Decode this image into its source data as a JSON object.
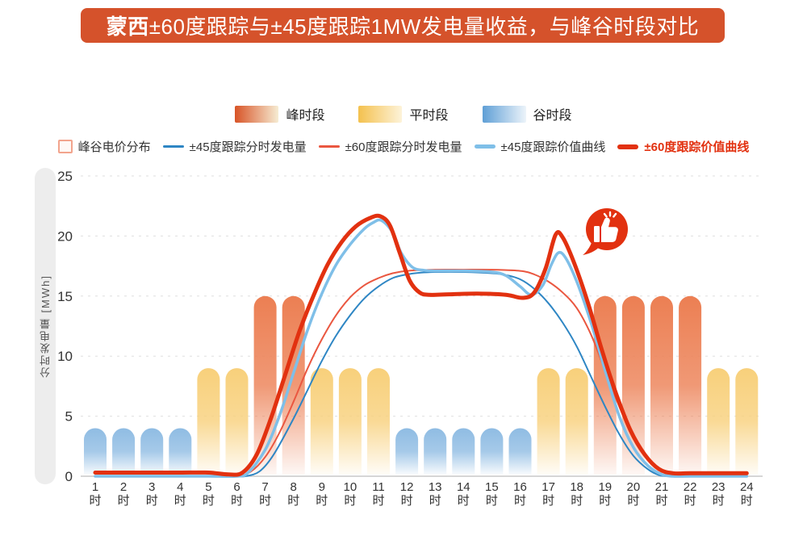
{
  "title": {
    "prefix": "蒙西",
    "rest": "±60度跟踪与±45度跟踪1MW发电量收益，与峰谷时段对比"
  },
  "colors": {
    "banner_bg": "#d5522b",
    "peak_bar": "#ec7f53",
    "flat_bar": "#f8d07b",
    "valley_bar": "#8fbce3",
    "thin_blue": "#2e86c4",
    "thin_red": "#ea5740",
    "thick_lightblue": "#7fbfe8",
    "thick_red": "#e23110",
    "price_box_border": "#f2a48d",
    "grid": "#dfdfdf",
    "axis": "#c8c8c8",
    "text": "#333333"
  },
  "period_legend": [
    {
      "key": "peak",
      "label": "峰时段"
    },
    {
      "key": "flat",
      "label": "平时段"
    },
    {
      "key": "valley",
      "label": "谷时段"
    }
  ],
  "series_legend": [
    {
      "label": "峰谷电价分布",
      "marker": "price-box"
    },
    {
      "label": "±45度跟踪分时发电量",
      "marker": "thin-blue-line"
    },
    {
      "label": "±60度跟踪分时发电量",
      "marker": "thin-red-line"
    },
    {
      "label": "±45度跟踪价值曲线",
      "marker": "thick-lightblue-line"
    },
    {
      "label": "±60度跟踪价值曲线",
      "marker": "thick-red-line",
      "emphasis": true
    }
  ],
  "annotation": {
    "icon": "thumbs-up",
    "near_hour": 17,
    "meaning": "±60度跟踪价值曲线晚峰收益突出"
  },
  "chart_data": [
    {
      "type": "bar",
      "name": "峰谷电价分布",
      "categories": [
        "1时",
        "2时",
        "3时",
        "4时",
        "5时",
        "6时",
        "7时",
        "8时",
        "9时",
        "10时",
        "11时",
        "12时",
        "13时",
        "14时",
        "15时",
        "16时",
        "17时",
        "18时",
        "19时",
        "20时",
        "21时",
        "22时",
        "23时",
        "24时"
      ],
      "values": [
        4,
        4,
        4,
        4,
        9,
        9,
        15,
        15,
        9,
        9,
        9,
        4,
        4,
        4,
        4,
        4,
        9,
        9,
        15,
        15,
        15,
        15,
        9,
        9
      ],
      "periods": [
        "valley",
        "valley",
        "valley",
        "valley",
        "flat",
        "flat",
        "peak",
        "peak",
        "flat",
        "flat",
        "flat",
        "valley",
        "valley",
        "valley",
        "valley",
        "valley",
        "flat",
        "flat",
        "peak",
        "peak",
        "peak",
        "peak",
        "flat",
        "flat"
      ],
      "period_values": {
        "peak": 15,
        "flat": 9,
        "valley": 4
      },
      "ylabel": "分时发电量 [MWh]",
      "ylim": [
        0,
        25
      ],
      "yticks": [
        0,
        5,
        10,
        15,
        20,
        25
      ],
      "grid": "dashed"
    },
    {
      "type": "line",
      "x_unit": "hour",
      "xlim": [
        1,
        24
      ],
      "series": [
        {
          "name": "±45度跟踪分时发电量",
          "color_key": "thin_blue",
          "width": 2,
          "points": [
            [
              1,
              0
            ],
            [
              2,
              0
            ],
            [
              3,
              0
            ],
            [
              4,
              0
            ],
            [
              5,
              0
            ],
            [
              6,
              0
            ],
            [
              6.3,
              0
            ],
            [
              6.8,
              0.4
            ],
            [
              7.3,
              1.8
            ],
            [
              8,
              4.8
            ],
            [
              8.5,
              7.2
            ],
            [
              9,
              9.6
            ],
            [
              9.5,
              11.7
            ],
            [
              10,
              13.4
            ],
            [
              10.5,
              14.8
            ],
            [
              11,
              15.8
            ],
            [
              11.5,
              16.5
            ],
            [
              12,
              16.8
            ],
            [
              12.5,
              16.95
            ],
            [
              13,
              17
            ],
            [
              14,
              17
            ],
            [
              15,
              16.9
            ],
            [
              15.5,
              16.75
            ],
            [
              16,
              16.4
            ],
            [
              16.5,
              15.6
            ],
            [
              17,
              14.4
            ],
            [
              17.5,
              12.8
            ],
            [
              18,
              10.8
            ],
            [
              18.5,
              8.3
            ],
            [
              19,
              5.8
            ],
            [
              19.5,
              3.5
            ],
            [
              20,
              1.7
            ],
            [
              20.5,
              0.6
            ],
            [
              20.9,
              0.1
            ],
            [
              21.3,
              0
            ],
            [
              22,
              0
            ],
            [
              23,
              0
            ],
            [
              24,
              0
            ]
          ]
        },
        {
          "name": "±60度跟踪分时发电量",
          "color_key": "thin_red",
          "width": 2,
          "points": [
            [
              1,
              0
            ],
            [
              2,
              0
            ],
            [
              3,
              0
            ],
            [
              4,
              0
            ],
            [
              5,
              0
            ],
            [
              6,
              0
            ],
            [
              6.5,
              0.4
            ],
            [
              7,
              1.6
            ],
            [
              7.5,
              3.6
            ],
            [
              8,
              6.2
            ],
            [
              8.5,
              9
            ],
            [
              9,
              11.4
            ],
            [
              9.5,
              13.4
            ],
            [
              10,
              14.9
            ],
            [
              10.5,
              15.9
            ],
            [
              11,
              16.5
            ],
            [
              11.5,
              16.9
            ],
            [
              12,
              17.1
            ],
            [
              13,
              17.2
            ],
            [
              14,
              17.2
            ],
            [
              15,
              17.2
            ],
            [
              16,
              17.1
            ],
            [
              16.5,
              16.8
            ],
            [
              17,
              16.2
            ],
            [
              17.5,
              15.3
            ],
            [
              18,
              14
            ],
            [
              18.5,
              11.8
            ],
            [
              19,
              8.8
            ],
            [
              19.5,
              5.8
            ],
            [
              20,
              3.2
            ],
            [
              20.5,
              1.4
            ],
            [
              21,
              0.4
            ],
            [
              21.4,
              0.05
            ],
            [
              22,
              0
            ],
            [
              23,
              0
            ],
            [
              24,
              0
            ]
          ]
        },
        {
          "name": "±45度跟踪价值曲线",
          "color_key": "thick_lightblue",
          "width": 3.5,
          "points": [
            [
              1,
              0
            ],
            [
              2,
              0
            ],
            [
              3,
              0
            ],
            [
              4,
              0
            ],
            [
              5,
              0
            ],
            [
              6,
              0
            ],
            [
              6.4,
              0.3
            ],
            [
              7,
              2.2
            ],
            [
              7.5,
              5
            ],
            [
              8,
              8.6
            ],
            [
              8.5,
              12.2
            ],
            [
              9,
              15.2
            ],
            [
              9.5,
              17.6
            ],
            [
              10,
              19.3
            ],
            [
              10.5,
              20.6
            ],
            [
              10.8,
              21.1
            ],
            [
              11.1,
              21.3
            ],
            [
              11.5,
              20.3
            ],
            [
              11.8,
              18.6
            ],
            [
              12.2,
              17.4
            ],
            [
              12.6,
              17.15
            ],
            [
              13,
              17.1
            ],
            [
              14,
              17.1
            ],
            [
              15,
              17
            ],
            [
              15.5,
              16.7
            ],
            [
              16,
              15.8
            ],
            [
              16.4,
              15.1
            ],
            [
              16.8,
              15.9
            ],
            [
              17.1,
              17.6
            ],
            [
              17.35,
              18.6
            ],
            [
              17.6,
              18.2
            ],
            [
              18,
              16.2
            ],
            [
              18.5,
              12.8
            ],
            [
              19,
              8.8
            ],
            [
              19.5,
              5
            ],
            [
              20,
              2.4
            ],
            [
              20.5,
              0.9
            ],
            [
              21,
              0.15
            ],
            [
              21.4,
              0
            ],
            [
              22,
              0
            ],
            [
              23,
              0
            ],
            [
              24,
              0
            ]
          ]
        },
        {
          "name": "±60度跟踪价值曲线",
          "color_key": "thick_red",
          "width": 5,
          "points": [
            [
              1,
              0.3
            ],
            [
              2,
              0.3
            ],
            [
              3,
              0.3
            ],
            [
              4,
              0.3
            ],
            [
              5,
              0.3
            ],
            [
              5.7,
              0.15
            ],
            [
              6.2,
              0.3
            ],
            [
              6.7,
              1.8
            ],
            [
              7.2,
              4.8
            ],
            [
              7.7,
              8.4
            ],
            [
              8.2,
              12
            ],
            [
              8.7,
              15
            ],
            [
              9.2,
              17.6
            ],
            [
              9.7,
              19.5
            ],
            [
              10.2,
              20.8
            ],
            [
              10.7,
              21.5
            ],
            [
              11.05,
              21.65
            ],
            [
              11.4,
              20.9
            ],
            [
              11.75,
              18.6
            ],
            [
              12.1,
              16.3
            ],
            [
              12.45,
              15.3
            ],
            [
              12.8,
              15.1
            ],
            [
              13.5,
              15.15
            ],
            [
              14.5,
              15.2
            ],
            [
              15.5,
              15.1
            ],
            [
              16.1,
              14.85
            ],
            [
              16.5,
              15.3
            ],
            [
              16.9,
              17.3
            ],
            [
              17.25,
              20.1
            ],
            [
              17.5,
              19.9
            ],
            [
              17.9,
              17.8
            ],
            [
              18.4,
              14.4
            ],
            [
              18.9,
              10.4
            ],
            [
              19.4,
              6.8
            ],
            [
              19.9,
              3.8
            ],
            [
              20.4,
              1.8
            ],
            [
              20.9,
              0.6
            ],
            [
              21.4,
              0.25
            ],
            [
              22,
              0.25
            ],
            [
              23,
              0.25
            ],
            [
              24,
              0.25
            ]
          ]
        }
      ]
    }
  ]
}
